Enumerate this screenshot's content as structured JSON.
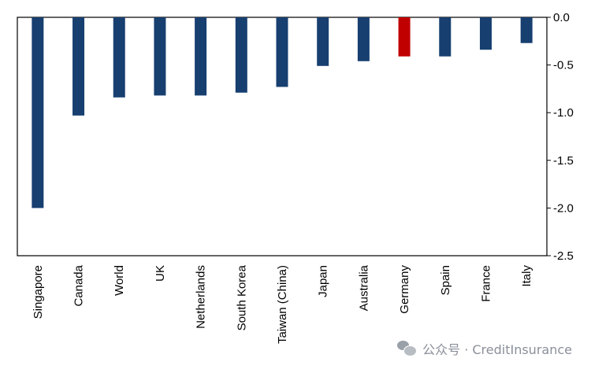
{
  "chart_data": {
    "type": "bar",
    "categories": [
      "Singapore",
      "Canada",
      "World",
      "UK",
      "Netherlands",
      "South Korea",
      "Taiwan (China)",
      "Japan",
      "Australia",
      "Germany",
      "Spain",
      "France",
      "Italy"
    ],
    "values": [
      -2.0,
      -1.03,
      -0.84,
      -0.82,
      -0.82,
      -0.79,
      -0.73,
      -0.51,
      -0.46,
      -0.41,
      -0.41,
      -0.34,
      -0.27
    ],
    "colors": [
      "#173f70",
      "#173f70",
      "#173f70",
      "#173f70",
      "#173f70",
      "#173f70",
      "#173f70",
      "#173f70",
      "#173f70",
      "#c00000",
      "#173f70",
      "#173f70",
      "#173f70"
    ],
    "highlight": "Germany",
    "ylim": [
      -2.5,
      0.0
    ],
    "yticks": [
      "0.0",
      "-0.5",
      "-1.0",
      "-1.5",
      "-2.0",
      "-2.5"
    ],
    "yaxis_position": "right",
    "grid": false,
    "title": "",
    "xlabel": "",
    "ylabel": ""
  },
  "watermark": {
    "text": "公众号 · CreditInsurance",
    "icon": "wechat-icon"
  }
}
